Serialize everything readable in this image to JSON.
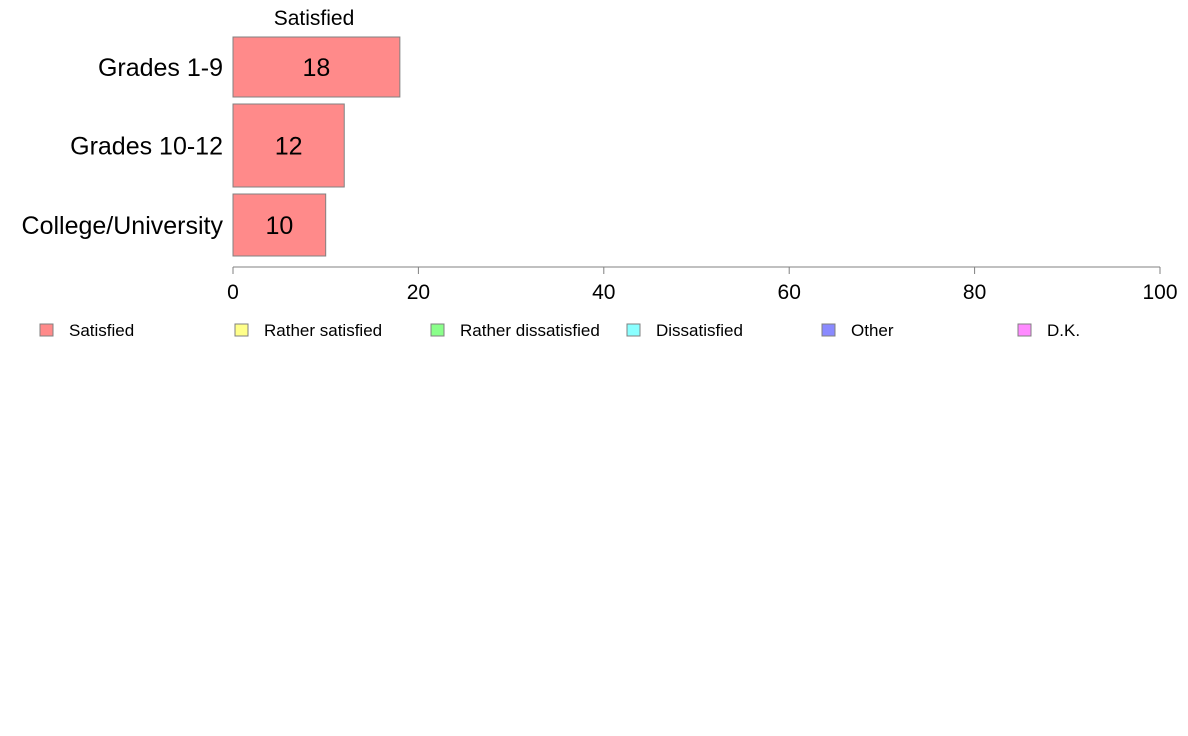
{
  "chart_data": {
    "type": "bar",
    "orientation": "horizontal",
    "stacked": true,
    "column_header": "Satisfied",
    "categories": [
      "Grades 1-9",
      "Grades 10-12",
      "College/University"
    ],
    "series": [
      {
        "name": "Satisfied",
        "values": [
          18,
          12,
          10
        ],
        "color": "#ff8a8a"
      },
      {
        "name": "Rather satisfied",
        "values": [
          null,
          null,
          null
        ],
        "color": "#ffff8a"
      },
      {
        "name": "Rather dissatisfied",
        "values": [
          null,
          null,
          null
        ],
        "color": "#8aff8a"
      },
      {
        "name": "Dissatisfied",
        "values": [
          null,
          null,
          null
        ],
        "color": "#8affff"
      },
      {
        "name": "Other",
        "values": [
          null,
          null,
          null
        ],
        "color": "#8a8aff"
      },
      {
        "name": "D.K.",
        "values": [
          null,
          null,
          null
        ],
        "color": "#ff8aff"
      }
    ],
    "data_labels": [
      "18",
      "12",
      "10"
    ],
    "xlim": [
      0,
      100
    ],
    "xticks": [
      0,
      20,
      40,
      60,
      80,
      100
    ],
    "grid": false,
    "legend_position": "bottom",
    "bar_border_color": "#808080",
    "axis_color": "#808080"
  }
}
